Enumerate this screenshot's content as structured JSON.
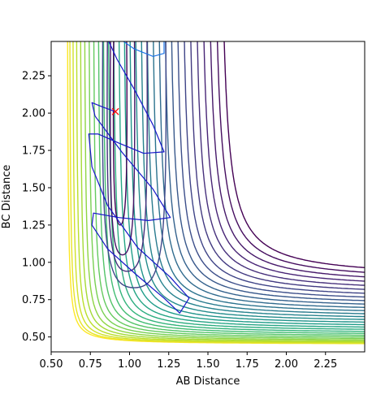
{
  "chart_data": {
    "type": "contour",
    "title": "",
    "xlabel": "AB Distance",
    "ylabel": "BC Distance",
    "xlim": [
      0.5,
      2.5
    ],
    "ylim": [
      0.4,
      2.48
    ],
    "xticks": [
      "0.50",
      "0.75",
      "1.00",
      "1.25",
      "1.50",
      "1.75",
      "2.00",
      "2.25"
    ],
    "yticks": [
      "0.50",
      "0.75",
      "1.00",
      "1.25",
      "1.50",
      "1.75",
      "2.00",
      "2.25"
    ],
    "colormap": [
      "#fde725",
      "#b5de2b",
      "#6ece58",
      "#35b779",
      "#1f9e89",
      "#26828e",
      "#31688e",
      "#3e4989",
      "#482878",
      "#440154"
    ],
    "trajectory_color": "#1515c8",
    "marker": {
      "x": 0.91,
      "y": 2.01,
      "symbol": "x",
      "color": "#ff0000"
    },
    "grid": false
  }
}
